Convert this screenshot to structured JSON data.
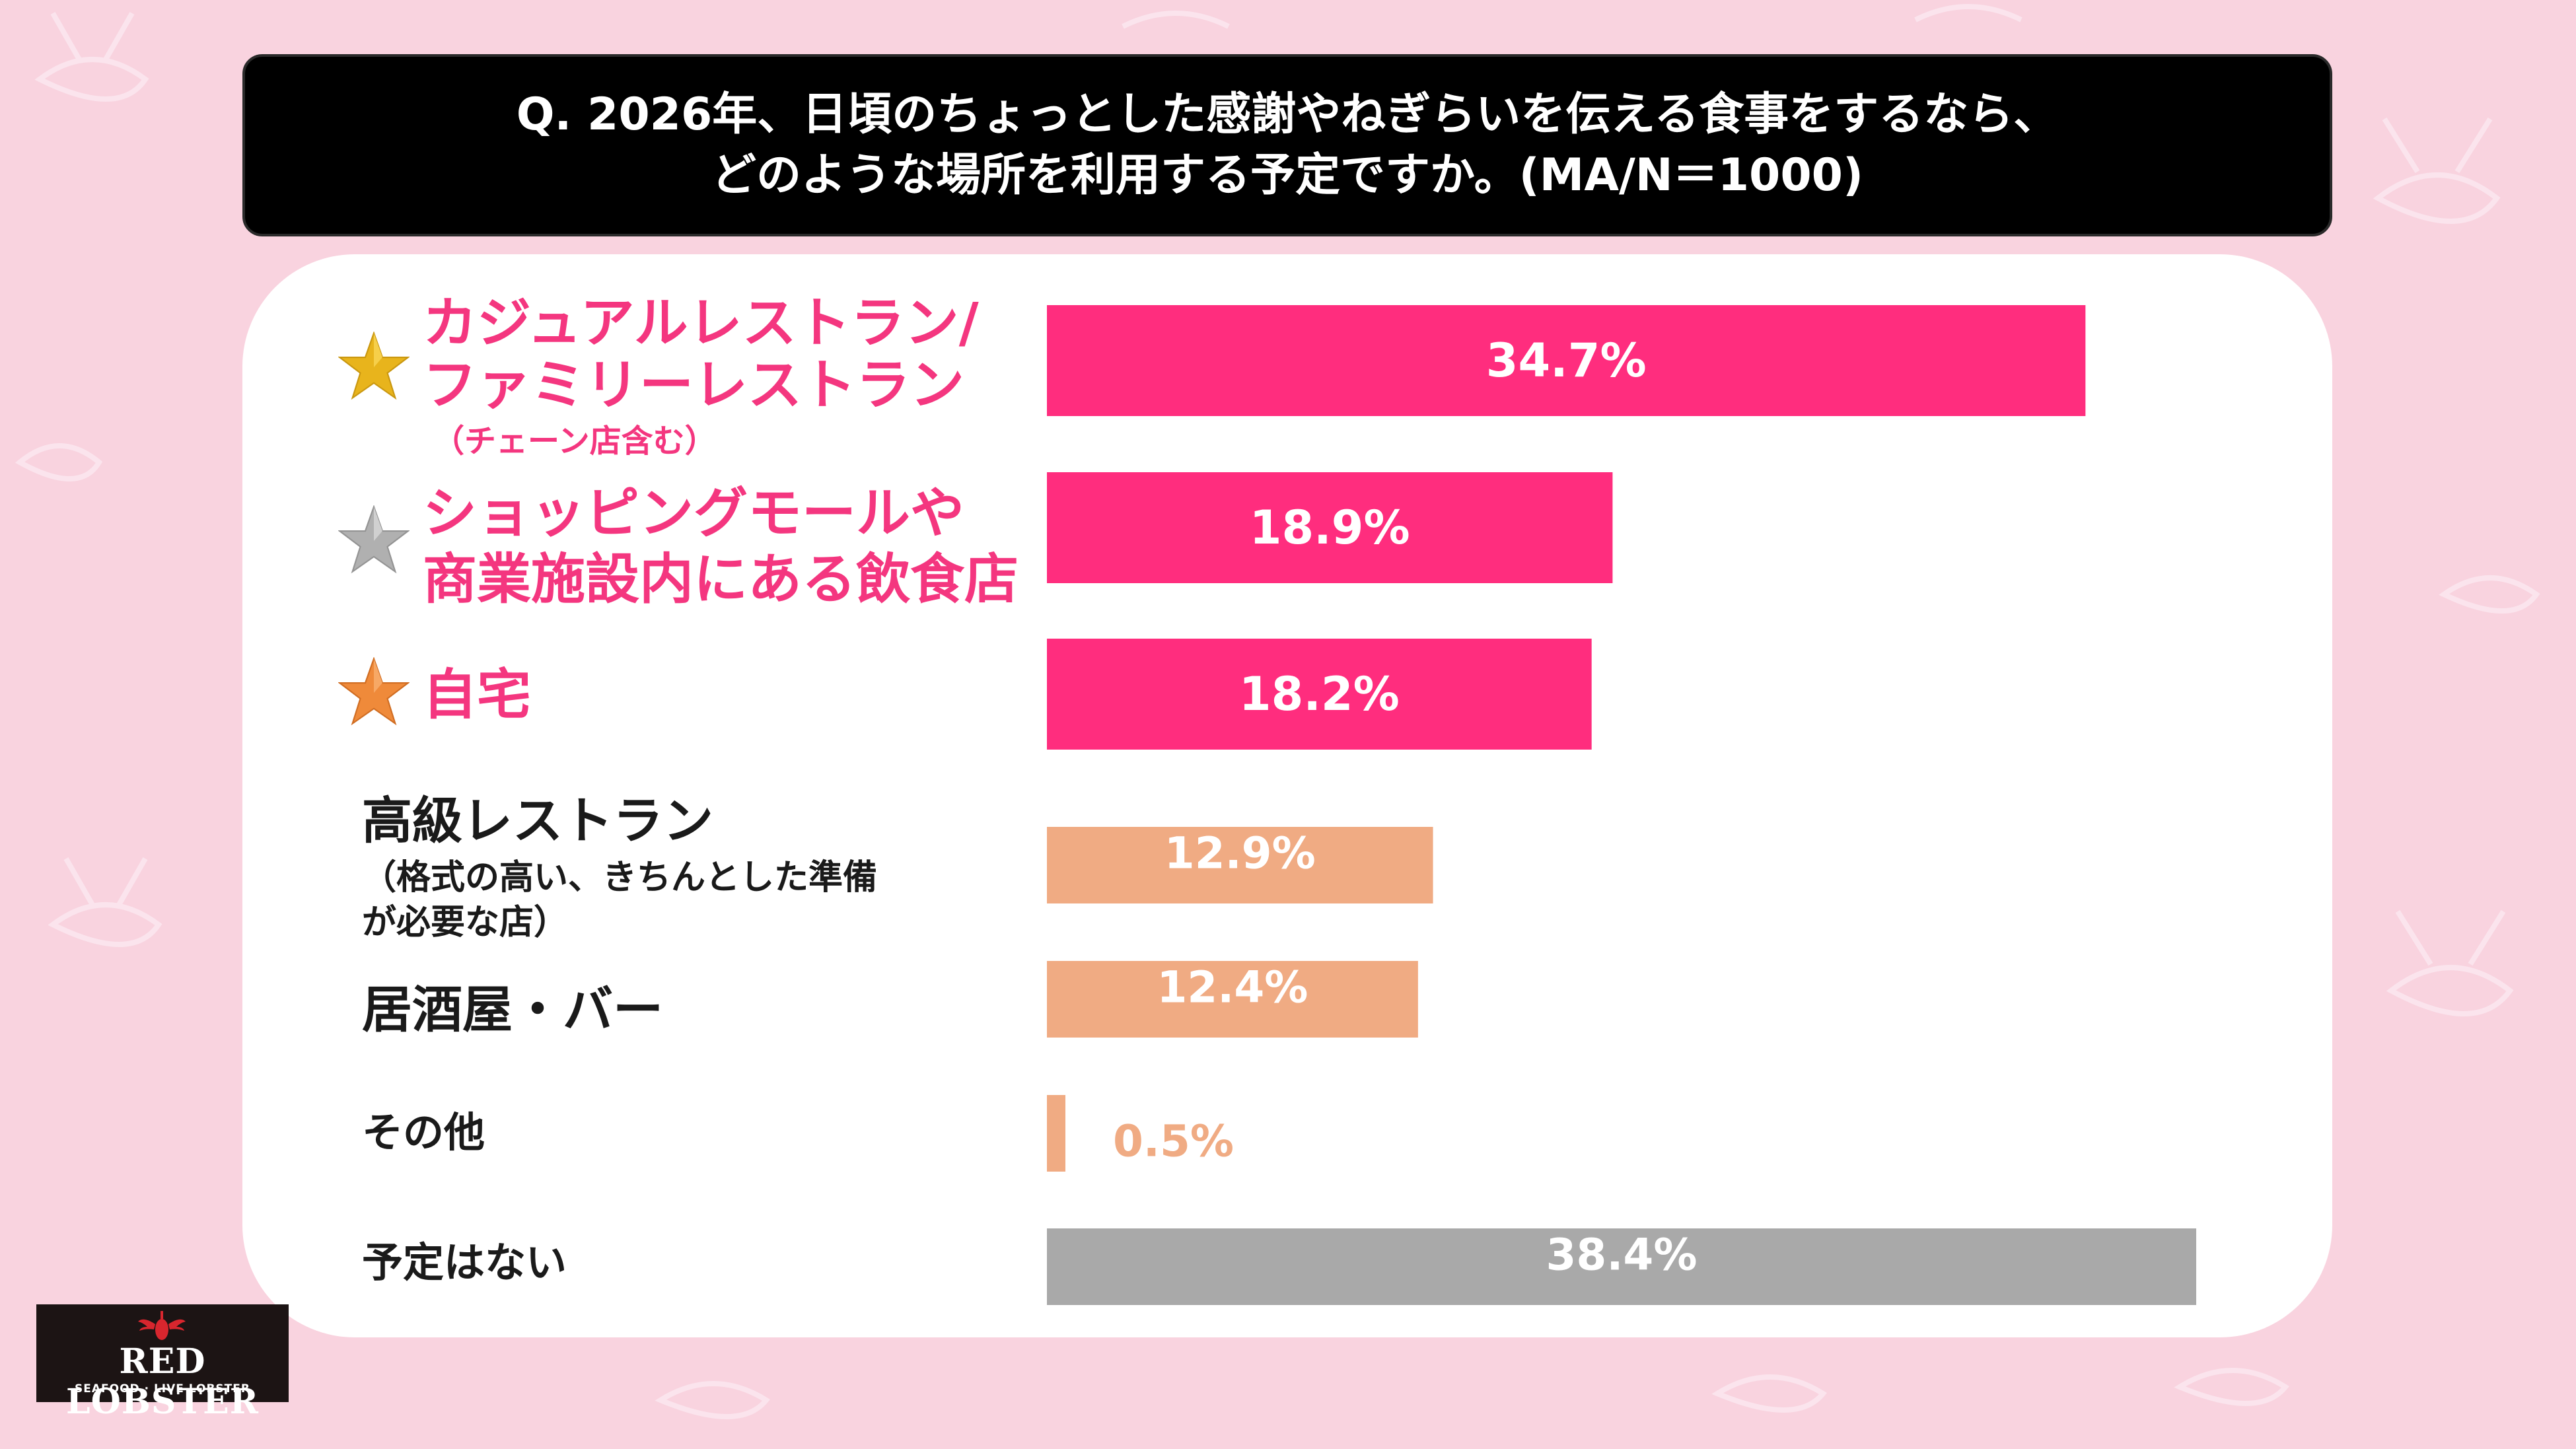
{
  "question": {
    "line1": "Q. 2026年、日頃のちょっとした感謝やねぎらいを伝える食事をするなら、",
    "line2": "どのような場所を利用する予定ですか。(MA/N＝1000)"
  },
  "colors": {
    "top3": "#ff2d7e",
    "other": "#f0ab83",
    "none": "#a9a9a9",
    "gold_star": "#e8b41c",
    "silver_star": "#b0b0b0",
    "bronze_star": "#ef8a3a"
  },
  "chart_data": {
    "type": "bar",
    "orientation": "horizontal",
    "title": "Q. 2026年、日頃のちょっとした感謝やねぎらいを伝える食事をするなら、どのような場所を利用する予定ですか。(MA/N＝1000)",
    "unit": "%",
    "xlim": [
      0,
      38.4
    ],
    "categories": [
      {
        "lines": [
          "カジュアルレストラン/",
          "ファミリーレストラン"
        ],
        "sub": "（チェーン店含む）",
        "value": 34.7,
        "label": "34.7%",
        "rank": "gold"
      },
      {
        "lines": [
          "ショッピングモールや",
          "商業施設内にある飲食店"
        ],
        "sub": "",
        "value": 18.9,
        "label": "18.9%",
        "rank": "silver"
      },
      {
        "lines": [
          "自宅"
        ],
        "sub": "",
        "value": 18.2,
        "label": "18.2%",
        "rank": "bronze"
      },
      {
        "lines": [
          "高級レストラン"
        ],
        "sub": "（格式の高い、きちんとした準備",
        "sub2": "が必要な店）",
        "value": 12.9,
        "label": "12.9%",
        "rank": ""
      },
      {
        "lines": [
          "居酒屋・バー"
        ],
        "sub": "",
        "value": 12.4,
        "label": "12.4%",
        "rank": ""
      },
      {
        "lines": [
          "その他"
        ],
        "sub": "",
        "value": 0.5,
        "label": "0.5%",
        "rank": ""
      },
      {
        "lines": [
          "予定はない"
        ],
        "sub": "",
        "value": 38.4,
        "label": "38.4%",
        "rank": ""
      }
    ]
  },
  "logo": {
    "name": "RED LOBSTER",
    "tagline": "SEAFOOD · LIVE LOBSTER"
  }
}
